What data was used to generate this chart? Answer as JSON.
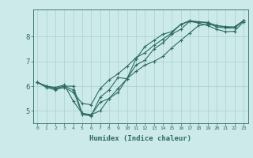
{
  "xlabel": "Humidex (Indice chaleur)",
  "bg_color": "#cceaea",
  "line_color": "#2e6b5e",
  "grid_color": "#aacfcf",
  "xlim": [
    -0.5,
    23.5
  ],
  "ylim": [
    4.5,
    9.1
  ],
  "yticks": [
    5,
    6,
    7,
    8
  ],
  "xticks": [
    0,
    1,
    2,
    3,
    4,
    5,
    6,
    7,
    8,
    9,
    10,
    11,
    12,
    13,
    14,
    15,
    16,
    17,
    18,
    19,
    20,
    21,
    22,
    23
  ],
  "lines": [
    [
      6.15,
      6.0,
      5.9,
      6.0,
      5.85,
      4.85,
      4.8,
      5.55,
      5.85,
      6.35,
      6.3,
      7.1,
      7.6,
      7.85,
      8.1,
      8.2,
      8.5,
      8.65,
      8.6,
      8.55,
      8.4,
      8.35,
      8.35,
      8.65
    ],
    [
      6.15,
      5.95,
      5.85,
      5.95,
      5.75,
      5.3,
      5.25,
      5.9,
      6.25,
      6.5,
      6.8,
      7.15,
      7.35,
      7.65,
      7.9,
      8.15,
      8.5,
      8.62,
      8.6,
      8.58,
      8.45,
      8.4,
      8.35,
      8.65
    ],
    [
      6.15,
      6.0,
      5.9,
      6.0,
      6.0,
      4.9,
      4.82,
      5.35,
      5.5,
      5.9,
      6.3,
      6.85,
      7.05,
      7.5,
      7.75,
      8.1,
      8.3,
      8.62,
      8.55,
      8.45,
      8.3,
      8.2,
      8.22,
      8.6
    ],
    [
      6.15,
      6.0,
      5.95,
      6.05,
      5.4,
      4.9,
      4.85,
      5.0,
      5.5,
      5.75,
      6.3,
      6.6,
      6.85,
      7.0,
      7.2,
      7.55,
      7.85,
      8.15,
      8.45,
      8.5,
      8.45,
      8.4,
      8.4,
      8.65
    ]
  ]
}
